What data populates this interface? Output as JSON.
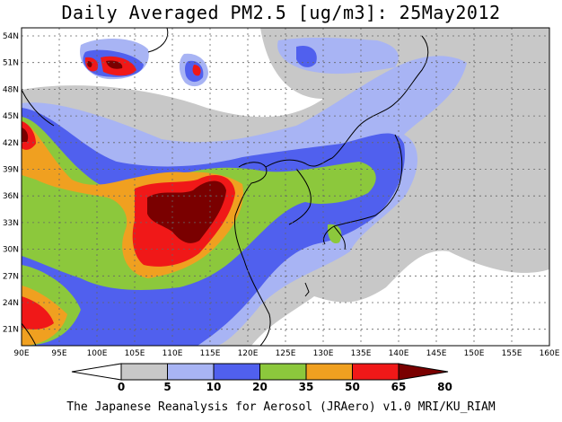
{
  "title": "Daily Averaged PM2.5 [ug/m3]: 25May2012",
  "footer": "The Japanese Reanalysis for Aerosol (JRAero) v1.0 MRI/KU_RIAM",
  "lat_labels": [
    "54N",
    "51N",
    "48N",
    "45N",
    "42N",
    "39N",
    "36N",
    "33N",
    "30N",
    "27N",
    "24N",
    "21N"
  ],
  "lon_labels": [
    "90E",
    "95E",
    "100E",
    "105E",
    "110E",
    "115E",
    "120E",
    "125E",
    "130E",
    "135E",
    "140E",
    "145E",
    "150E",
    "155E",
    "160E"
  ],
  "colorbar": {
    "levels": [
      "0",
      "5",
      "10",
      "20",
      "35",
      "50",
      "65",
      "80"
    ],
    "colors": [
      "#ffffff",
      "#c8c8c8",
      "#a8b4f4",
      "#5060ee",
      "#8cc83c",
      "#f0a020",
      "#f01818",
      "#7a0000"
    ]
  }
}
